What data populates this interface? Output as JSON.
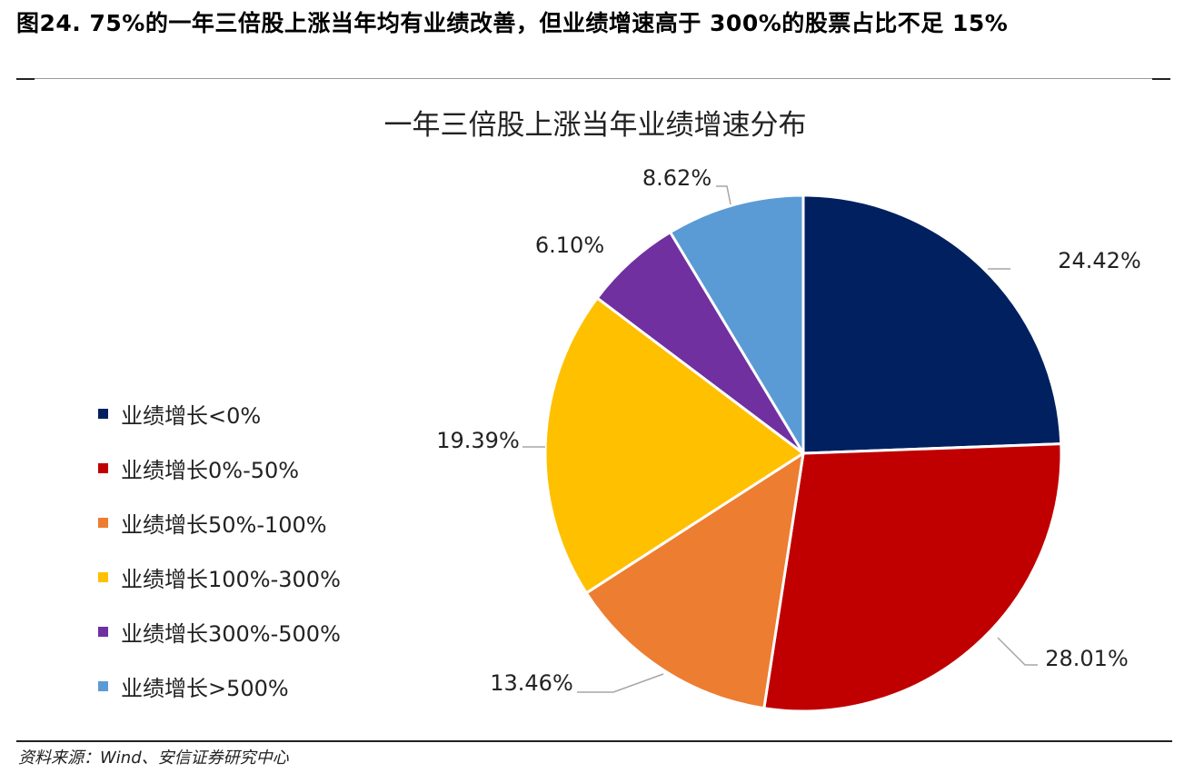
{
  "figure": {
    "caption": "图24. 75%的一年三倍股上涨当年均有业绩改善，但业绩增速高于 300%的股票占比不足 15%",
    "source": "资料来源：Wind、安信证券研究中心"
  },
  "chart_data": {
    "type": "pie",
    "title": "一年三倍股上涨当年业绩增速分布",
    "categories": [
      "业绩增长<0%",
      "业绩增长0%-50%",
      "业绩增长50%-100%",
      "业绩增长100%-300%",
      "业绩增长300%-500%",
      "业绩增长>500%"
    ],
    "values": [
      24.42,
      28.01,
      13.46,
      19.39,
      6.1,
      8.62
    ],
    "labels": [
      "24.42%",
      "28.01%",
      "13.46%",
      "19.39%",
      "6.10%",
      "8.62%"
    ],
    "colors": [
      "#002060",
      "#C00000",
      "#ED7D31",
      "#FFC000",
      "#7030A0",
      "#5B9BD5"
    ],
    "start_angle": "12 o'clock",
    "direction": "clockwise",
    "legend_position": "left"
  }
}
